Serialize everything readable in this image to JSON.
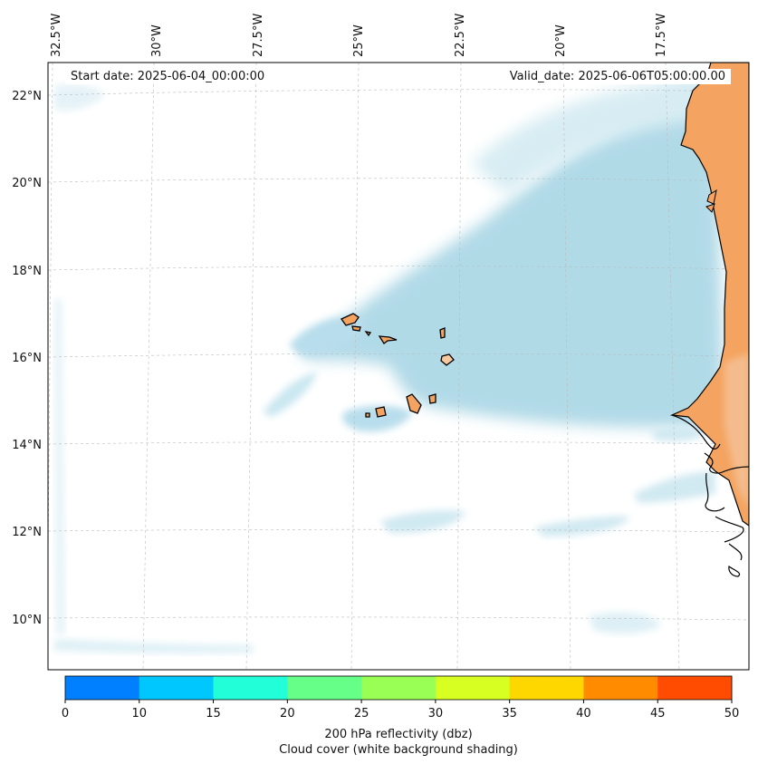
{
  "map": {
    "start_label": "Start date: 2025-06-04_00:00:00",
    "valid_label": "Valid_date: 2025-06-06T05:00:00.00",
    "longitude_labels": [
      "32.5°W",
      "30°W",
      "27.5°W",
      "25°W",
      "22.5°W",
      "20°W",
      "17.5°W"
    ],
    "latitude_labels": [
      "22°N",
      "20°N",
      "18°N",
      "16°N",
      "14°N",
      "12°N",
      "10°N"
    ],
    "land_color": "#f4a460",
    "cloud_color": "#add8e6",
    "grid": "dashed"
  },
  "colorbar": {
    "ticks": [
      "0",
      "10",
      "15",
      "20",
      "25",
      "30",
      "35",
      "40",
      "45",
      "50"
    ],
    "colors": [
      "#0080ff",
      "#00c8ff",
      "#22ffd8",
      "#66ff88",
      "#99ff55",
      "#d8ff22",
      "#ffd700",
      "#ff8c00",
      "#ff4c00"
    ],
    "label_line1": "200 hPa reflectivity (dbz)",
    "label_line2": "Cloud cover (white background shading)"
  }
}
